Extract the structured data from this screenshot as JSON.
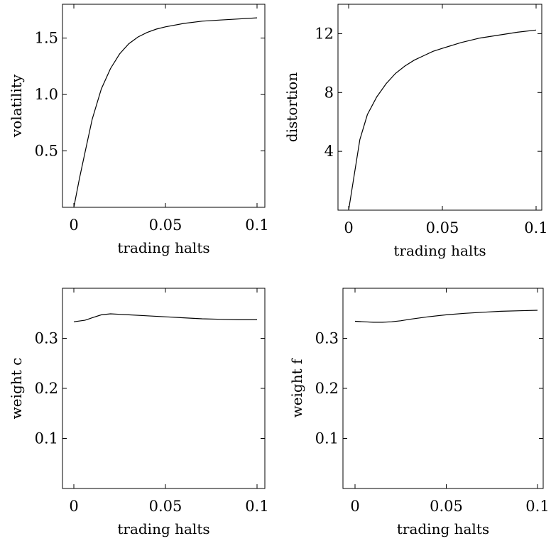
{
  "chart_data": [
    {
      "type": "line",
      "xlabel": "trading  halts",
      "ylabel": "volatility",
      "xlim": [
        0,
        0.1
      ],
      "ylim": [
        0,
        1.8
      ],
      "xticks": [
        0,
        0.05,
        0.1
      ],
      "xtick_labels": [
        "0",
        "0.05",
        "0.1"
      ],
      "yticks": [
        0.5,
        1.0,
        1.5
      ],
      "ytick_labels": [
        "0.5",
        "1.0",
        "1.5"
      ],
      "grid": false,
      "series": [
        {
          "x": [
            0,
            0.003,
            0.006,
            0.01,
            0.015,
            0.02,
            0.025,
            0.03,
            0.035,
            0.04,
            0.045,
            0.05,
            0.06,
            0.07,
            0.08,
            0.09,
            0.1
          ],
          "y": [
            0.0,
            0.25,
            0.48,
            0.78,
            1.05,
            1.23,
            1.36,
            1.45,
            1.51,
            1.55,
            1.58,
            1.6,
            1.63,
            1.65,
            1.66,
            1.67,
            1.68
          ]
        }
      ]
    },
    {
      "type": "line",
      "xlabel": "trading  halts",
      "ylabel": "distortion",
      "xlim": [
        0,
        0.1
      ],
      "ylim": [
        0,
        14
      ],
      "xticks": [
        0,
        0.05,
        0.1
      ],
      "xtick_labels": [
        "0",
        "0.05",
        "0.1"
      ],
      "yticks": [
        4,
        8,
        12
      ],
      "ytick_labels": [
        "4",
        "8",
        "12"
      ],
      "grid": false,
      "series": [
        {
          "x": [
            0,
            0.006,
            0.01,
            0.015,
            0.02,
            0.025,
            0.03,
            0.035,
            0.04,
            0.045,
            0.05,
            0.06,
            0.07,
            0.08,
            0.09,
            0.1
          ],
          "y": [
            0.0,
            4.8,
            6.5,
            7.7,
            8.6,
            9.3,
            9.8,
            10.2,
            10.5,
            10.8,
            11.0,
            11.4,
            11.7,
            11.9,
            12.1,
            12.25
          ]
        }
      ]
    },
    {
      "type": "line",
      "xlabel": "trading  halts",
      "ylabel": "weight  c",
      "xlim": [
        0,
        0.1
      ],
      "ylim": [
        0,
        0.4
      ],
      "xticks": [
        0,
        0.05,
        0.1
      ],
      "xtick_labels": [
        "0",
        "0.05",
        "0.1"
      ],
      "yticks": [
        0.1,
        0.2,
        0.3
      ],
      "ytick_labels": [
        "0.1",
        "0.2",
        "0.3"
      ],
      "grid": false,
      "series": [
        {
          "x": [
            0,
            0.006,
            0.01,
            0.015,
            0.02,
            0.025,
            0.03,
            0.04,
            0.05,
            0.06,
            0.07,
            0.08,
            0.09,
            0.1
          ],
          "y": [
            0.333,
            0.336,
            0.341,
            0.347,
            0.349,
            0.348,
            0.347,
            0.345,
            0.343,
            0.341,
            0.339,
            0.338,
            0.337,
            0.337
          ]
        }
      ]
    },
    {
      "type": "line",
      "xlabel": "trading  halts",
      "ylabel": "weight  f",
      "xlim": [
        0,
        0.1
      ],
      "ylim": [
        0,
        0.4
      ],
      "xticks": [
        0,
        0.05,
        0.1
      ],
      "xtick_labels": [
        "0",
        "0.05",
        "0.1"
      ],
      "yticks": [
        0.1,
        0.2,
        0.3
      ],
      "ytick_labels": [
        "0.1",
        "0.2",
        "0.3"
      ],
      "grid": false,
      "series": [
        {
          "x": [
            0,
            0.005,
            0.01,
            0.015,
            0.02,
            0.025,
            0.03,
            0.04,
            0.05,
            0.06,
            0.07,
            0.08,
            0.09,
            0.1
          ],
          "y": [
            0.334,
            0.333,
            0.332,
            0.332,
            0.333,
            0.335,
            0.338,
            0.343,
            0.347,
            0.35,
            0.352,
            0.354,
            0.355,
            0.356
          ]
        }
      ]
    }
  ]
}
